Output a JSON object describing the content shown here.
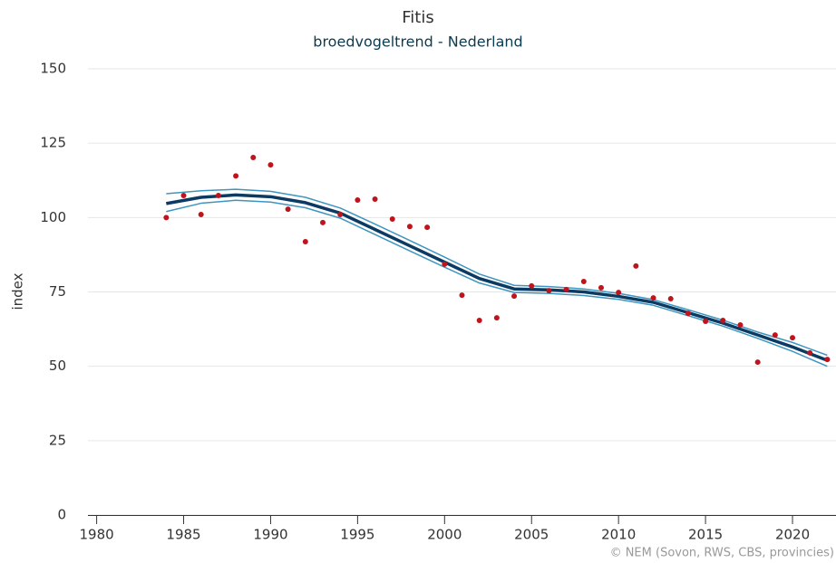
{
  "chart_data": {
    "type": "line",
    "title": "Fitis",
    "subtitle": "broedvogeltrend - Nederland",
    "y_label": "index",
    "credit": "© NEM (Sovon, RWS, CBS, provincies)",
    "xlim": [
      1979.5,
      2022.5
    ],
    "xticks": [
      1980,
      1985,
      1990,
      1995,
      2000,
      2005,
      2010,
      2015,
      2020
    ],
    "ylim": [
      0,
      150
    ],
    "yticks": [
      0,
      25,
      50,
      75,
      100,
      125,
      150
    ],
    "grid": true,
    "series": [
      {
        "type": "line",
        "color": "#3e95c0",
        "x": [
          1984,
          1986,
          1988,
          1990,
          1992,
          1994,
          1996,
          1998,
          2000,
          2002,
          2004,
          2006,
          2008,
          2010,
          2012,
          2014,
          2016,
          2018,
          2020,
          2022
        ],
        "values": [
          108,
          109,
          109.5,
          108.8,
          106.8,
          103.2,
          97.8,
          92.3,
          86.7,
          81,
          77.2,
          76.8,
          76,
          74.5,
          72.4,
          69,
          65.5,
          61.5,
          58,
          53.7
        ]
      },
      {
        "type": "line",
        "color": "#3e95c0",
        "x": [
          1984,
          1986,
          1988,
          1990,
          1992,
          1994,
          1996,
          1998,
          2000,
          2002,
          2004,
          2006,
          2008,
          2010,
          2012,
          2014,
          2016,
          2018,
          2020,
          2022
        ],
        "values": [
          102,
          104.8,
          105.8,
          105.2,
          103.3,
          99.8,
          94.3,
          88.8,
          83.3,
          78,
          74.8,
          74.5,
          73.8,
          72.5,
          70.5,
          67,
          63.5,
          59.4,
          55,
          50
        ]
      },
      {
        "type": "line",
        "color": "#0b3b63",
        "x": [
          1984,
          1986,
          1988,
          1990,
          1992,
          1994,
          1996,
          1998,
          2000,
          2002,
          2004,
          2006,
          2008,
          2010,
          2012,
          2014,
          2016,
          2018,
          2020,
          2022
        ],
        "values": [
          104.7,
          106.8,
          107.6,
          107,
          105,
          101.5,
          96,
          90.5,
          85,
          79.5,
          76,
          75.7,
          75,
          73.5,
          71.5,
          68,
          64.5,
          60.5,
          56.5,
          52
        ]
      },
      {
        "type": "scatter",
        "color": "#c0141c",
        "x": [
          1984,
          1985,
          1986,
          1987,
          1988,
          1989,
          1990,
          1991,
          1992,
          1993,
          1994,
          1995,
          1996,
          1997,
          1998,
          1999,
          2000,
          2001,
          2002,
          2003,
          2004,
          2005,
          2006,
          2007,
          2008,
          2009,
          2010,
          2011,
          2012,
          2013,
          2014,
          2015,
          2016,
          2017,
          2018,
          2019,
          2020,
          2021,
          2022
        ],
        "values": [
          100,
          107.4,
          101,
          107.4,
          114,
          120.2,
          117.7,
          102.8,
          91.9,
          98.3,
          101,
          105.9,
          106.2,
          99.5,
          97,
          96.7,
          84.3,
          73.9,
          65.4,
          66.3,
          73.6,
          77,
          75.4,
          75.8,
          78.5,
          76.4,
          74.8,
          83.7,
          73,
          72.7,
          67.8,
          65.1,
          65.4,
          63.9,
          51.4,
          60.5,
          59.6,
          54.5,
          52.3
        ]
      }
    ]
  }
}
